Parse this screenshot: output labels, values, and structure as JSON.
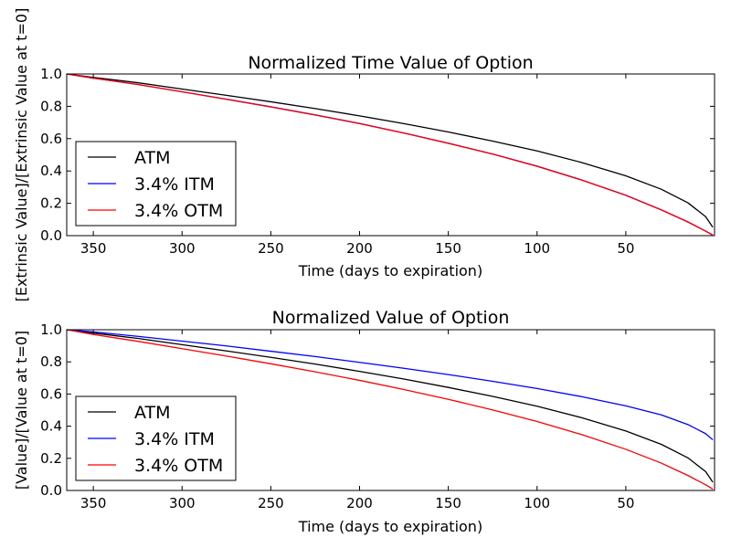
{
  "chart_data": [
    {
      "type": "line",
      "title": "Normalized Time Value of Option",
      "xlabel": "Time (days to expiration)",
      "ylabel": "[Extrinsic Value]/[Extrinsic Value at t=0]",
      "xlim": [
        365,
        0
      ],
      "ylim": [
        0.0,
        1.0
      ],
      "xticks": [
        350,
        300,
        250,
        200,
        150,
        100,
        50
      ],
      "yticks": [
        0.0,
        0.2,
        0.4,
        0.6,
        0.8,
        1.0
      ],
      "legend_position": "lower-left",
      "x": [
        365,
        350,
        325,
        300,
        275,
        250,
        225,
        200,
        175,
        150,
        125,
        100,
        75,
        50,
        30,
        15,
        5,
        1
      ],
      "series": [
        {
          "name": "ATM",
          "color": "#000000",
          "values": [
            1.0,
            0.979,
            0.946,
            0.907,
            0.868,
            0.828,
            0.786,
            0.741,
            0.693,
            0.641,
            0.585,
            0.524,
            0.453,
            0.37,
            0.287,
            0.203,
            0.117,
            0.052
          ]
        },
        {
          "name": "3.4% ITM",
          "color": "#0000ff",
          "values": [
            1.0,
            0.974,
            0.935,
            0.89,
            0.844,
            0.797,
            0.747,
            0.694,
            0.635,
            0.572,
            0.505,
            0.43,
            0.345,
            0.25,
            0.16,
            0.085,
            0.028,
            0.004
          ]
        },
        {
          "name": "3.4% OTM",
          "color": "#ff0000",
          "values": [
            1.0,
            0.974,
            0.935,
            0.89,
            0.843,
            0.796,
            0.746,
            0.693,
            0.634,
            0.571,
            0.504,
            0.429,
            0.344,
            0.249,
            0.159,
            0.084,
            0.027,
            0.003
          ]
        }
      ]
    },
    {
      "type": "line",
      "title": "Normalized Value of Option",
      "xlabel": "Time (days to expiration)",
      "ylabel": "[Value]/[Value at t=0]",
      "xlim": [
        365,
        0
      ],
      "ylim": [
        0.0,
        1.0
      ],
      "xticks": [
        350,
        300,
        250,
        200,
        150,
        100,
        50
      ],
      "yticks": [
        0.0,
        0.2,
        0.4,
        0.6,
        0.8,
        1.0
      ],
      "legend_position": "lower-left",
      "x": [
        365,
        350,
        325,
        300,
        275,
        250,
        225,
        200,
        175,
        150,
        125,
        100,
        75,
        50,
        30,
        15,
        5,
        1
      ],
      "series": [
        {
          "name": "ATM",
          "color": "#000000",
          "values": [
            1.0,
            0.979,
            0.946,
            0.907,
            0.868,
            0.828,
            0.786,
            0.741,
            0.693,
            0.641,
            0.585,
            0.524,
            0.453,
            0.37,
            0.287,
            0.203,
            0.117,
            0.052
          ]
        },
        {
          "name": "3.4% ITM",
          "color": "#0000ff",
          "values": [
            1.0,
            0.986,
            0.959,
            0.929,
            0.899,
            0.866,
            0.833,
            0.797,
            0.76,
            0.721,
            0.679,
            0.634,
            0.584,
            0.526,
            0.47,
            0.41,
            0.353,
            0.315
          ]
        },
        {
          "name": "3.4% OTM",
          "color": "#ff0000",
          "values": [
            1.0,
            0.97,
            0.928,
            0.882,
            0.836,
            0.788,
            0.738,
            0.685,
            0.628,
            0.567,
            0.501,
            0.429,
            0.348,
            0.256,
            0.17,
            0.093,
            0.035,
            0.008
          ]
        }
      ]
    }
  ]
}
